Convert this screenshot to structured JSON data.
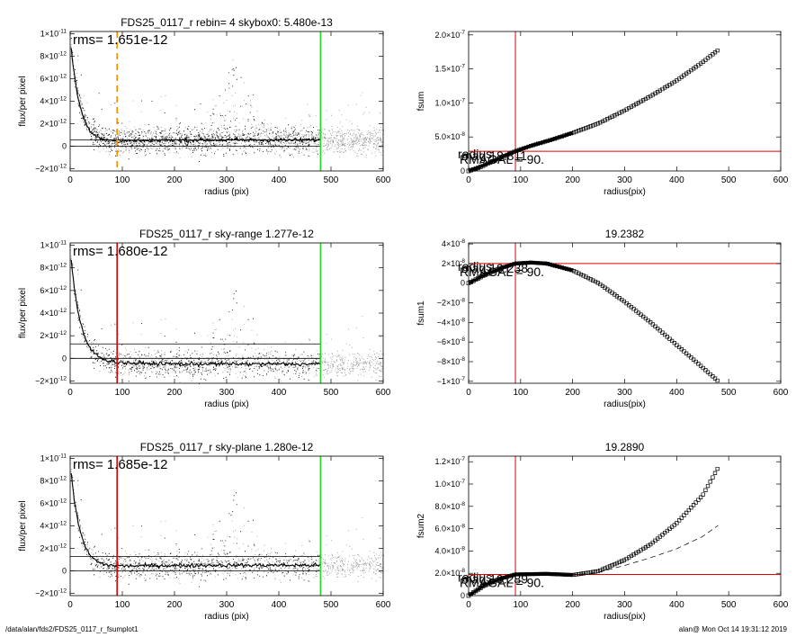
{
  "footer": {
    "path": "/data/alan/fds2/FDS25_0117_r_fsumplot1",
    "stamp": "alan@  Mon Oct 14 19:31:12 2019"
  },
  "colors": {
    "scatter_black": "#000000",
    "scatter_gray": "#9a9a9a",
    "marker_orange": "#ff8c00",
    "marker_red": "#e00000",
    "marker_green": "#22dd22"
  },
  "chart_data": [
    {
      "id": "flux1",
      "type": "scatter",
      "title": "FDS25_0117_r rebin= 4    skybox0:  5.480e-13",
      "annotation": "rms= 1.651e-12",
      "xlabel": "radius (pix)",
      "ylabel": "flux/per pixel",
      "xlim": [
        0,
        600
      ],
      "ylim": [
        -2.2e-12,
        1.02e-11
      ],
      "xticks": [
        0,
        100,
        200,
        300,
        400,
        500,
        600
      ],
      "yticks": [
        {
          "v": 1e-11,
          "m": "1×10",
          "e": "-11"
        },
        {
          "v": 8e-12,
          "m": "8×10",
          "e": "-12"
        },
        {
          "v": 6e-12,
          "m": "6×10",
          "e": "-12"
        },
        {
          "v": 4e-12,
          "m": "4×10",
          "e": "-12"
        },
        {
          "v": 2e-12,
          "m": "2×10",
          "e": "-12"
        },
        {
          "v": 0,
          "m": "0",
          "e": ""
        },
        {
          "v": -2e-12,
          "m": "−2×10",
          "e": "-12"
        }
      ],
      "hlines": [
        0,
        5.48e-13
      ],
      "vlines": [
        {
          "x": 90,
          "color": "marker_orange",
          "style": "dashed"
        },
        {
          "x": 480,
          "color": "marker_green",
          "style": "solid"
        }
      ],
      "profile_tail": 5.5e-13
    },
    {
      "id": "fsum",
      "type": "scatter",
      "title": "",
      "annotation": "mag 18.811",
      "overlap_labels": [
        "radius",
        "RMAGAL = 90."
      ],
      "xlabel": "radius(pix)",
      "ylabel": "fsum",
      "xlim": [
        0,
        600
      ],
      "ylim": [
        0,
        2.05e-07
      ],
      "xticks": [
        0,
        100,
        200,
        300,
        400,
        500,
        600
      ],
      "yticks": [
        {
          "v": 2e-07,
          "m": "2.0×10",
          "e": "-7"
        },
        {
          "v": 1.5e-07,
          "m": "1.5×10",
          "e": "-7"
        },
        {
          "v": 1e-07,
          "m": "1.0×10",
          "e": "-7"
        },
        {
          "v": 5e-08,
          "m": "5.0×10",
          "e": "-8"
        },
        {
          "v": 0,
          "m": "0",
          "e": ""
        }
      ],
      "vline": 90,
      "hline": 2.9e-08,
      "points": [
        [
          0,
          0
        ],
        [
          20,
          5e-09
        ],
        [
          40,
          1.2e-08
        ],
        [
          60,
          1.9e-08
        ],
        [
          80,
          2.6e-08
        ],
        [
          90,
          2.9e-08
        ],
        [
          120,
          3.7e-08
        ],
        [
          160,
          4.6e-08
        ],
        [
          200,
          5.6e-08
        ],
        [
          250,
          7e-08
        ],
        [
          300,
          8.9e-08
        ],
        [
          350,
          1.1e-07
        ],
        [
          400,
          1.33e-07
        ],
        [
          450,
          1.6e-07
        ],
        [
          480,
          1.78e-07
        ]
      ]
    },
    {
      "id": "flux2",
      "type": "scatter",
      "title": "FDS25_0117_r sky-range  1.277e-12",
      "annotation": "rms= 1.680e-12",
      "xlabel": "radius (pix)",
      "ylabel": "flux/per pixel",
      "xlim": [
        0,
        600
      ],
      "ylim": [
        -2.2e-12,
        1.02e-11
      ],
      "xticks": [
        0,
        100,
        200,
        300,
        400,
        500,
        600
      ],
      "yticks": [
        {
          "v": 1e-11,
          "m": "1×10",
          "e": "-11"
        },
        {
          "v": 8e-12,
          "m": "8×10",
          "e": "-12"
        },
        {
          "v": 6e-12,
          "m": "6×10",
          "e": "-12"
        },
        {
          "v": 4e-12,
          "m": "4×10",
          "e": "-12"
        },
        {
          "v": 2e-12,
          "m": "2×10",
          "e": "-12"
        },
        {
          "v": 0,
          "m": "0",
          "e": ""
        },
        {
          "v": -2e-12,
          "m": "−2×10",
          "e": "-12"
        }
      ],
      "hlines": [
        0,
        1.277e-12
      ],
      "vlines": [
        {
          "x": 90,
          "color": "marker_red",
          "style": "solid"
        },
        {
          "x": 480,
          "color": "marker_green",
          "style": "solid"
        }
      ],
      "profile_tail": -5e-13
    },
    {
      "id": "fsum1",
      "type": "scatter",
      "title": "19.2382",
      "annotation": "mag 19.238",
      "overlap_labels": [
        "radius",
        "RMAGAL = 90."
      ],
      "xlabel": "radius(pix)",
      "ylabel": "fsum1",
      "xlim": [
        0,
        600
      ],
      "ylim": [
        -1.02e-07,
        4.1e-08
      ],
      "xticks": [
        0,
        100,
        200,
        300,
        400,
        500,
        600
      ],
      "yticks": [
        {
          "v": 4e-08,
          "m": "4×10",
          "e": "-8"
        },
        {
          "v": 2e-08,
          "m": "2×10",
          "e": "-8"
        },
        {
          "v": 0,
          "m": "0",
          "e": ""
        },
        {
          "v": -2e-08,
          "m": "−2×10",
          "e": "-8"
        },
        {
          "v": -4e-08,
          "m": "−4×10",
          "e": "-8"
        },
        {
          "v": -6e-08,
          "m": "−6×10",
          "e": "-8"
        },
        {
          "v": -8e-08,
          "m": "−8×10",
          "e": "-8"
        },
        {
          "v": -1e-07,
          "m": "−1×10",
          "e": "-7"
        }
      ],
      "vline": 90,
      "hline": 2e-08,
      "points": [
        [
          0,
          0
        ],
        [
          30,
          8e-09
        ],
        [
          60,
          1.5e-08
        ],
        [
          90,
          2e-08
        ],
        [
          120,
          2.1e-08
        ],
        [
          150,
          2e-08
        ],
        [
          200,
          1.3e-08
        ],
        [
          250,
          0
        ],
        [
          300,
          -1.9e-08
        ],
        [
          350,
          -4e-08
        ],
        [
          400,
          -6.3e-08
        ],
        [
          450,
          -8.6e-08
        ],
        [
          480,
          -1e-07
        ]
      ]
    },
    {
      "id": "flux3",
      "type": "scatter",
      "title": "FDS25_0117_r sky-plane  1.280e-12",
      "annotation": "rms= 1.685e-12",
      "xlabel": "radius (pix)",
      "ylabel": "flux/per pixel",
      "xlim": [
        0,
        600
      ],
      "ylim": [
        -2.2e-12,
        1.02e-11
      ],
      "xticks": [
        0,
        100,
        200,
        300,
        400,
        500,
        600
      ],
      "yticks": [
        {
          "v": 1e-11,
          "m": "1×10",
          "e": "-11"
        },
        {
          "v": 8e-12,
          "m": "8×10",
          "e": "-12"
        },
        {
          "v": 6e-12,
          "m": "6×10",
          "e": "-12"
        },
        {
          "v": 4e-12,
          "m": "4×10",
          "e": "-12"
        },
        {
          "v": 2e-12,
          "m": "2×10",
          "e": "-12"
        },
        {
          "v": 0,
          "m": "0",
          "e": ""
        },
        {
          "v": -2e-12,
          "m": "−2×10",
          "e": "-12"
        }
      ],
      "hlines": [
        0,
        1.28e-12
      ],
      "vlines": [
        {
          "x": 90,
          "color": "marker_red",
          "style": "solid"
        },
        {
          "x": 480,
          "color": "marker_green",
          "style": "solid"
        }
      ],
      "profile_tail": 5e-13
    },
    {
      "id": "fsum2",
      "type": "scatter",
      "title": "19.2890",
      "annotation": "mag 19.289",
      "overlap_labels": [
        "radius",
        "RMAGAL = 90."
      ],
      "xlabel": "radius(pix)",
      "ylabel": "fsum2",
      "xlim": [
        0,
        600
      ],
      "ylim": [
        0,
        1.25e-07
      ],
      "xticks": [
        0,
        100,
        200,
        300,
        400,
        500,
        600
      ],
      "yticks": [
        {
          "v": 1.2e-07,
          "m": "1.2×10",
          "e": "-7"
        },
        {
          "v": 1e-07,
          "m": "1.0×10",
          "e": "-7"
        },
        {
          "v": 8e-08,
          "m": "8.0×10",
          "e": "-8"
        },
        {
          "v": 6e-08,
          "m": "6.0×10",
          "e": "-8"
        },
        {
          "v": 4e-08,
          "m": "4.0×10",
          "e": "-8"
        },
        {
          "v": 2e-08,
          "m": "2.0×10",
          "e": "-8"
        },
        {
          "v": 0,
          "m": "0",
          "e": ""
        }
      ],
      "vline": 90,
      "hline": 1.9e-08,
      "points": [
        [
          0,
          0
        ],
        [
          30,
          9e-09
        ],
        [
          60,
          1.5e-08
        ],
        [
          90,
          1.9e-08
        ],
        [
          150,
          1.95e-08
        ],
        [
          200,
          1.85e-08
        ],
        [
          250,
          2.2e-08
        ],
        [
          300,
          3.2e-08
        ],
        [
          350,
          4.6e-08
        ],
        [
          400,
          6.5e-08
        ],
        [
          450,
          9e-08
        ],
        [
          480,
          1.15e-07
        ]
      ],
      "dashed_points": [
        [
          0,
          0
        ],
        [
          30,
          9e-09
        ],
        [
          60,
          1.5e-08
        ],
        [
          90,
          1.9e-08
        ],
        [
          150,
          1.95e-08
        ],
        [
          200,
          1.85e-08
        ],
        [
          250,
          2.1e-08
        ],
        [
          300,
          2.7e-08
        ],
        [
          350,
          3.4e-08
        ],
        [
          400,
          4.2e-08
        ],
        [
          450,
          5.3e-08
        ],
        [
          480,
          6.3e-08
        ]
      ]
    }
  ]
}
